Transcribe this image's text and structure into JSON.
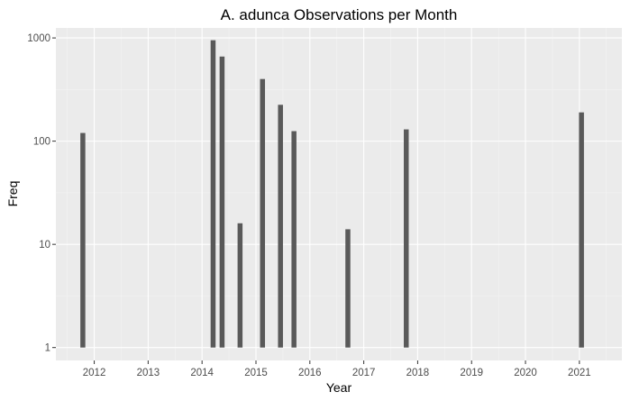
{
  "chart_data": {
    "type": "bar",
    "title": "A. adunca Observations per Month",
    "xlabel": "Year",
    "ylabel": "Freq",
    "y_scale": "log10",
    "ylim": [
      0.75,
      1250
    ],
    "xlim": [
      "2011-04-15",
      "2021-10-15"
    ],
    "grid": true,
    "legend": "none",
    "colors": {
      "panel": "#ebebeb",
      "grid_major": "#ffffff",
      "grid_minor": "#f4f4f4",
      "bar": "#595959",
      "tick": "#4d4d4d"
    },
    "x_ticks": [
      "2012",
      "2013",
      "2014",
      "2015",
      "2016",
      "2017",
      "2018",
      "2019",
      "2020",
      "2021"
    ],
    "y_ticks": [
      "1",
      "10",
      "100",
      "1000"
    ],
    "categories": [
      "2011-10",
      "2014-03",
      "2014-05",
      "2014-09",
      "2015-02",
      "2015-06",
      "2015-09",
      "2016-09",
      "2017-10",
      "2021-01"
    ],
    "series": [
      {
        "values": [
          120,
          950,
          660,
          16,
          400,
          225,
          125,
          14,
          130,
          190
        ]
      }
    ]
  }
}
